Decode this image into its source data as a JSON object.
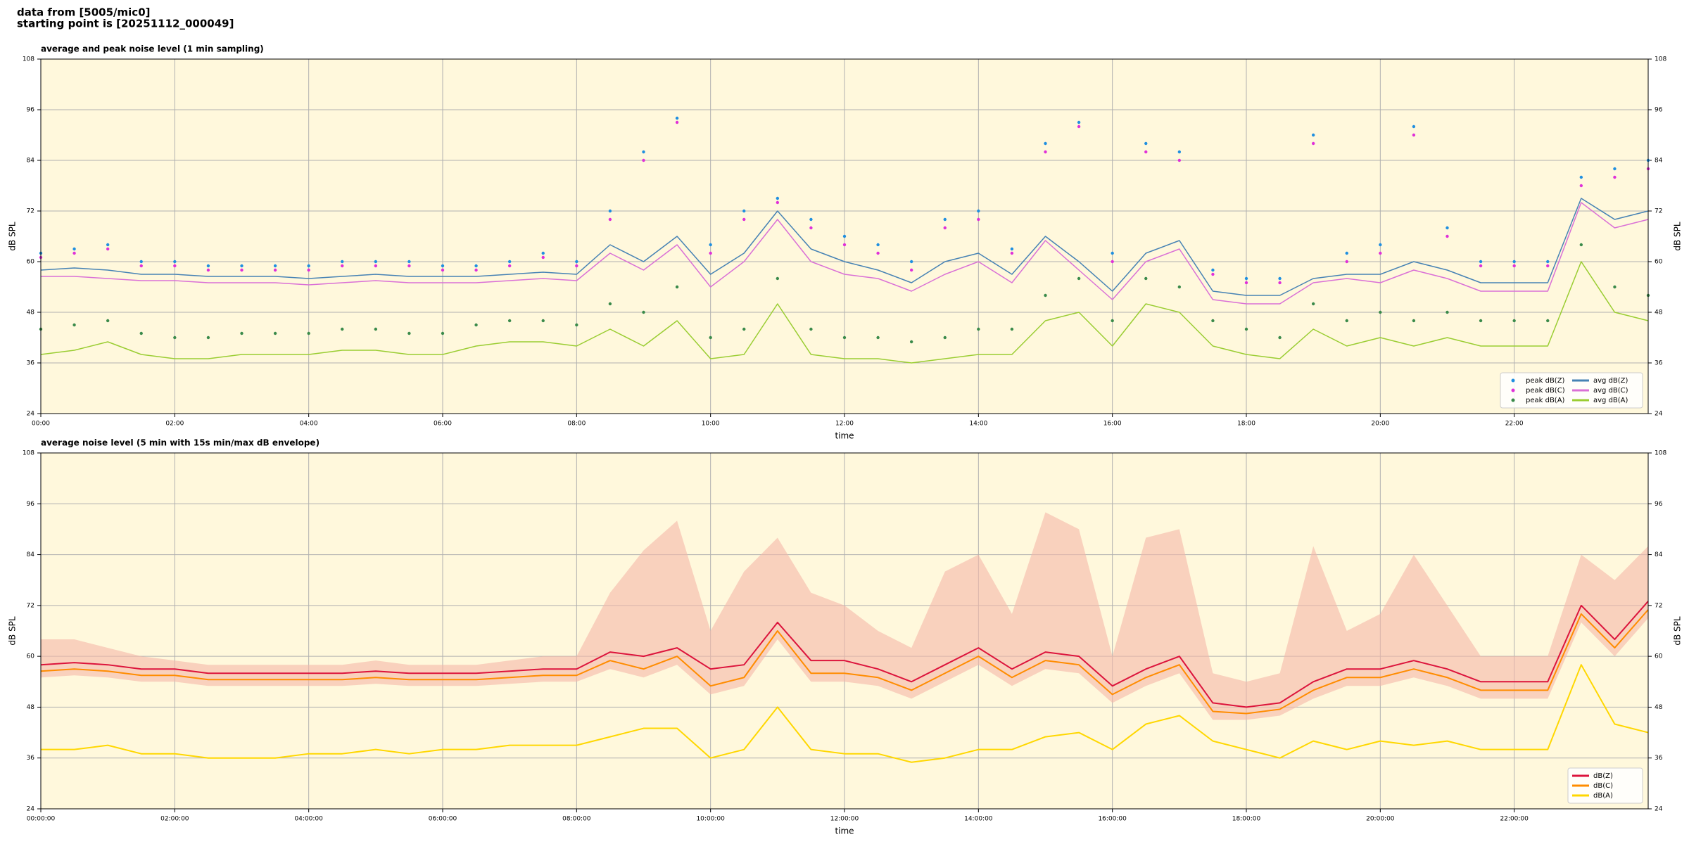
{
  "header": {
    "lines": [
      "data from [5005/mic0]",
      "starting point is [20251112_000049]"
    ]
  },
  "chart_data": [
    {
      "type": "line",
      "title": "average and peak noise level (1 min sampling)",
      "xlabel": "time",
      "ylabel": "dB SPL",
      "x": [
        0,
        0.5,
        1,
        1.5,
        2,
        2.5,
        3,
        3.5,
        4,
        4.5,
        5,
        5.5,
        6,
        6.5,
        7,
        7.5,
        8,
        8.5,
        9,
        9.5,
        10,
        10.5,
        11,
        11.5,
        12,
        12.5,
        13,
        13.5,
        14,
        14.5,
        15,
        15.5,
        16,
        16.5,
        17,
        17.5,
        18,
        18.5,
        19,
        19.5,
        20,
        20.5,
        21,
        21.5,
        22,
        22.5,
        23,
        23.5,
        24
      ],
      "xlim": [
        0,
        24
      ],
      "xticks": [
        {
          "value": 0,
          "label": "00:00"
        },
        {
          "value": 2,
          "label": "02:00"
        },
        {
          "value": 4,
          "label": "04:00"
        },
        {
          "value": 6,
          "label": "06:00"
        },
        {
          "value": 8,
          "label": "08:00"
        },
        {
          "value": 10,
          "label": "10:00"
        },
        {
          "value": 12,
          "label": "12:00"
        },
        {
          "value": 14,
          "label": "14:00"
        },
        {
          "value": 16,
          "label": "16:00"
        },
        {
          "value": 18,
          "label": "18:00"
        },
        {
          "value": 20,
          "label": "20:00"
        },
        {
          "value": 22,
          "label": "22:00"
        }
      ],
      "ylim": [
        24,
        108
      ],
      "yticks": [
        24,
        36,
        48,
        60,
        72,
        84,
        96,
        108
      ],
      "grid": true,
      "legend": "lower right",
      "legend_columns": 2,
      "series": [
        {
          "name": "peak dB(Z)",
          "kind": "scatter",
          "color": "#1f8fe0",
          "values": [
            62,
            63,
            64,
            60,
            60,
            59,
            59,
            59,
            59,
            60,
            60,
            60,
            59,
            59,
            60,
            62,
            60,
            72,
            86,
            94,
            64,
            72,
            75,
            70,
            66,
            64,
            60,
            70,
            72,
            63,
            88,
            93,
            62,
            88,
            86,
            58,
            56,
            56,
            90,
            62,
            64,
            92,
            68,
            60,
            60,
            60,
            80,
            82,
            84
          ]
        },
        {
          "name": "peak dB(C)",
          "kind": "scatter",
          "color": "#e030d8",
          "values": [
            61,
            62,
            63,
            59,
            59,
            58,
            58,
            58,
            58,
            59,
            59,
            59,
            58,
            58,
            59,
            61,
            59,
            70,
            84,
            93,
            62,
            70,
            74,
            68,
            64,
            62,
            58,
            68,
            70,
            62,
            86,
            92,
            60,
            86,
            84,
            57,
            55,
            55,
            88,
            60,
            62,
            90,
            66,
            59,
            59,
            59,
            78,
            80,
            82
          ]
        },
        {
          "name": "peak dB(A)",
          "kind": "scatter",
          "color": "#3a8a4a",
          "values": [
            44,
            45,
            46,
            43,
            42,
            42,
            43,
            43,
            43,
            44,
            44,
            43,
            43,
            45,
            46,
            46,
            45,
            50,
            48,
            54,
            42,
            44,
            56,
            44,
            42,
            42,
            41,
            42,
            44,
            44,
            52,
            56,
            46,
            56,
            54,
            46,
            44,
            42,
            50,
            46,
            48,
            46,
            48,
            46,
            46,
            46,
            64,
            54,
            52
          ]
        },
        {
          "name": "avg dB(Z)",
          "kind": "line",
          "color": "#4682b4",
          "values": [
            58,
            58.5,
            58,
            57,
            57,
            56.5,
            56.5,
            56.5,
            56,
            56.5,
            57,
            56.5,
            56.5,
            56.5,
            57,
            57.5,
            57,
            64,
            60,
            66,
            57,
            62,
            72,
            63,
            60,
            58,
            55,
            60,
            62,
            57,
            66,
            60,
            53,
            62,
            65,
            53,
            52,
            52,
            56,
            57,
            57,
            60,
            58,
            55,
            55,
            55,
            75,
            70,
            72
          ]
        },
        {
          "name": "avg dB(C)",
          "kind": "line",
          "color": "#da70d6",
          "values": [
            56.5,
            56.5,
            56,
            55.5,
            55.5,
            55,
            55,
            55,
            54.5,
            55,
            55.5,
            55,
            55,
            55,
            55.5,
            56,
            55.5,
            62,
            58,
            64,
            54,
            60,
            70,
            60,
            57,
            56,
            53,
            57,
            60,
            55,
            65,
            58,
            51,
            60,
            63,
            51,
            50,
            50,
            55,
            56,
            55,
            58,
            56,
            53,
            53,
            53,
            74,
            68,
            70
          ]
        },
        {
          "name": "avg dB(A)",
          "kind": "line",
          "color": "#9acd32",
          "values": [
            38,
            39,
            41,
            38,
            37,
            37,
            38,
            38,
            38,
            39,
            39,
            38,
            38,
            40,
            41,
            41,
            40,
            44,
            40,
            46,
            37,
            38,
            50,
            38,
            37,
            37,
            36,
            37,
            38,
            38,
            46,
            48,
            40,
            50,
            48,
            40,
            38,
            37,
            44,
            40,
            42,
            40,
            42,
            40,
            40,
            40,
            60,
            48,
            46
          ]
        }
      ]
    },
    {
      "type": "line",
      "title": "average noise level (5 min with 15s min/max dB envelope)",
      "xlabel": "time",
      "ylabel": "dB SPL",
      "x": [
        0,
        0.5,
        1,
        1.5,
        2,
        2.5,
        3,
        3.5,
        4,
        4.5,
        5,
        5.5,
        6,
        6.5,
        7,
        7.5,
        8,
        8.5,
        9,
        9.5,
        10,
        10.5,
        11,
        11.5,
        12,
        12.5,
        13,
        13.5,
        14,
        14.5,
        15,
        15.5,
        16,
        16.5,
        17,
        17.5,
        18,
        18.5,
        19,
        19.5,
        20,
        20.5,
        21,
        21.5,
        22,
        22.5,
        23,
        23.5,
        24
      ],
      "xlim": [
        0,
        24
      ],
      "xticks": [
        {
          "value": 0,
          "label": "00:00:00"
        },
        {
          "value": 2,
          "label": "02:00:00"
        },
        {
          "value": 4,
          "label": "04:00:00"
        },
        {
          "value": 6,
          "label": "06:00:00"
        },
        {
          "value": 8,
          "label": "08:00:00"
        },
        {
          "value": 10,
          "label": "10:00:00"
        },
        {
          "value": 12,
          "label": "12:00:00"
        },
        {
          "value": 14,
          "label": "14:00:00"
        },
        {
          "value": 16,
          "label": "16:00:00"
        },
        {
          "value": 18,
          "label": "18:00:00"
        },
        {
          "value": 20,
          "label": "20:00:00"
        },
        {
          "value": 22,
          "label": "22:00:00"
        }
      ],
      "ylim": [
        24,
        108
      ],
      "yticks": [
        24,
        36,
        48,
        60,
        72,
        84,
        96,
        108
      ],
      "grid": true,
      "legend": "lower right",
      "legend_columns": 1,
      "envelope": {
        "color": "#f5b8a8",
        "max": [
          64,
          64,
          62,
          60,
          59,
          58,
          58,
          58,
          58,
          58,
          59,
          58,
          58,
          58,
          59,
          60,
          60,
          75,
          85,
          92,
          66,
          80,
          88,
          75,
          72,
          66,
          62,
          80,
          84,
          70,
          94,
          90,
          60,
          88,
          90,
          56,
          54,
          56,
          86,
          66,
          70,
          84,
          72,
          60,
          60,
          60,
          84,
          78,
          86
        ],
        "min": [
          55,
          55.5,
          55,
          54,
          54,
          53,
          53,
          53,
          53,
          53,
          53.5,
          53,
          53,
          53,
          53.5,
          54,
          54,
          57,
          55,
          58,
          51,
          53,
          64,
          54,
          54,
          53,
          50,
          54,
          58,
          53,
          57,
          56,
          49,
          53,
          56,
          45,
          45,
          46,
          50,
          53,
          53,
          55,
          53,
          50,
          50,
          50,
          68,
          60,
          69
        ]
      },
      "series": [
        {
          "name": "dB(Z)",
          "kind": "line",
          "color": "#dc143c",
          "values": [
            58,
            58.5,
            58,
            57,
            57,
            56,
            56,
            56,
            56,
            56,
            56.5,
            56,
            56,
            56,
            56.5,
            57,
            57,
            61,
            60,
            62,
            57,
            58,
            68,
            59,
            59,
            57,
            54,
            58,
            62,
            57,
            61,
            60,
            53,
            57,
            60,
            49,
            48,
            49,
            54,
            57,
            57,
            59,
            57,
            54,
            54,
            54,
            72,
            64,
            73
          ]
        },
        {
          "name": "dB(C)",
          "kind": "line",
          "color": "#ff8c00",
          "values": [
            56.5,
            57,
            56.5,
            55.5,
            55.5,
            54.5,
            54.5,
            54.5,
            54.5,
            54.5,
            55,
            54.5,
            54.5,
            54.5,
            55,
            55.5,
            55.5,
            59,
            57,
            60,
            53,
            55,
            66,
            56,
            56,
            55,
            52,
            56,
            60,
            55,
            59,
            58,
            51,
            55,
            58,
            47,
            46.5,
            47.5,
            52,
            55,
            55,
            57,
            55,
            52,
            52,
            52,
            70,
            62,
            71
          ]
        },
        {
          "name": "dB(A)",
          "kind": "line",
          "color": "#ffd700",
          "values": [
            38,
            38,
            39,
            37,
            37,
            36,
            36,
            36,
            37,
            37,
            38,
            37,
            38,
            38,
            39,
            39,
            39,
            41,
            43,
            43,
            36,
            38,
            48,
            38,
            37,
            37,
            35,
            36,
            38,
            38,
            41,
            42,
            38,
            44,
            46,
            40,
            38,
            36,
            40,
            38,
            40,
            39,
            40,
            38,
            38,
            38,
            58,
            44,
            42
          ]
        }
      ]
    }
  ]
}
